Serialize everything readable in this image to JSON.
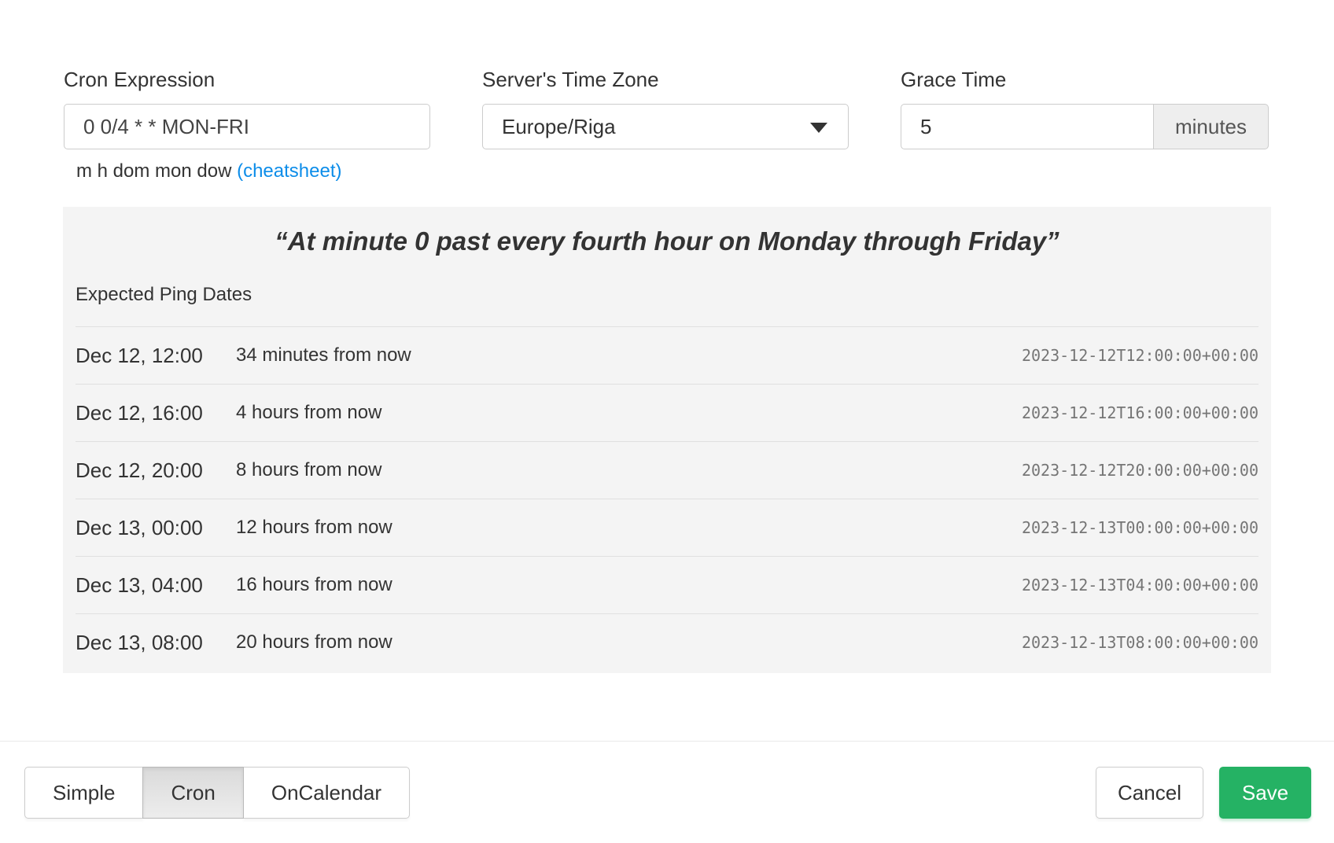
{
  "form": {
    "cron": {
      "label": "Cron Expression",
      "value": "0 0/4 * * MON-FRI",
      "helper_prefix": "m h dom mon dow ",
      "helper_link": "(cheatsheet)"
    },
    "timezone": {
      "label": "Server's Time Zone",
      "value": "Europe/Riga"
    },
    "grace": {
      "label": "Grace Time",
      "value": "5",
      "unit": "minutes"
    }
  },
  "preview": {
    "description": "“At minute 0 past every fourth hour on Monday through Friday”",
    "expected_label": "Expected Ping Dates",
    "rows": [
      {
        "date": "Dec 12, 12:00",
        "relative": "34 minutes from now",
        "iso": "2023-12-12T12:00:00+00:00"
      },
      {
        "date": "Dec 12, 16:00",
        "relative": "4 hours from now",
        "iso": "2023-12-12T16:00:00+00:00"
      },
      {
        "date": "Dec 12, 20:00",
        "relative": "8 hours from now",
        "iso": "2023-12-12T20:00:00+00:00"
      },
      {
        "date": "Dec 13, 00:00",
        "relative": "12 hours from now",
        "iso": "2023-12-13T00:00:00+00:00"
      },
      {
        "date": "Dec 13, 04:00",
        "relative": "16 hours from now",
        "iso": "2023-12-13T04:00:00+00:00"
      },
      {
        "date": "Dec 13, 08:00",
        "relative": "20 hours from now",
        "iso": "2023-12-13T08:00:00+00:00"
      }
    ]
  },
  "footer": {
    "modes": [
      {
        "label": "Simple"
      },
      {
        "label": "Cron"
      },
      {
        "label": "OnCalendar"
      }
    ],
    "cancel_label": "Cancel",
    "save_label": "Save"
  },
  "colors": {
    "accent_green": "#25b264",
    "link_blue": "#0d8de9",
    "panel_bg": "#f4f4f4"
  }
}
